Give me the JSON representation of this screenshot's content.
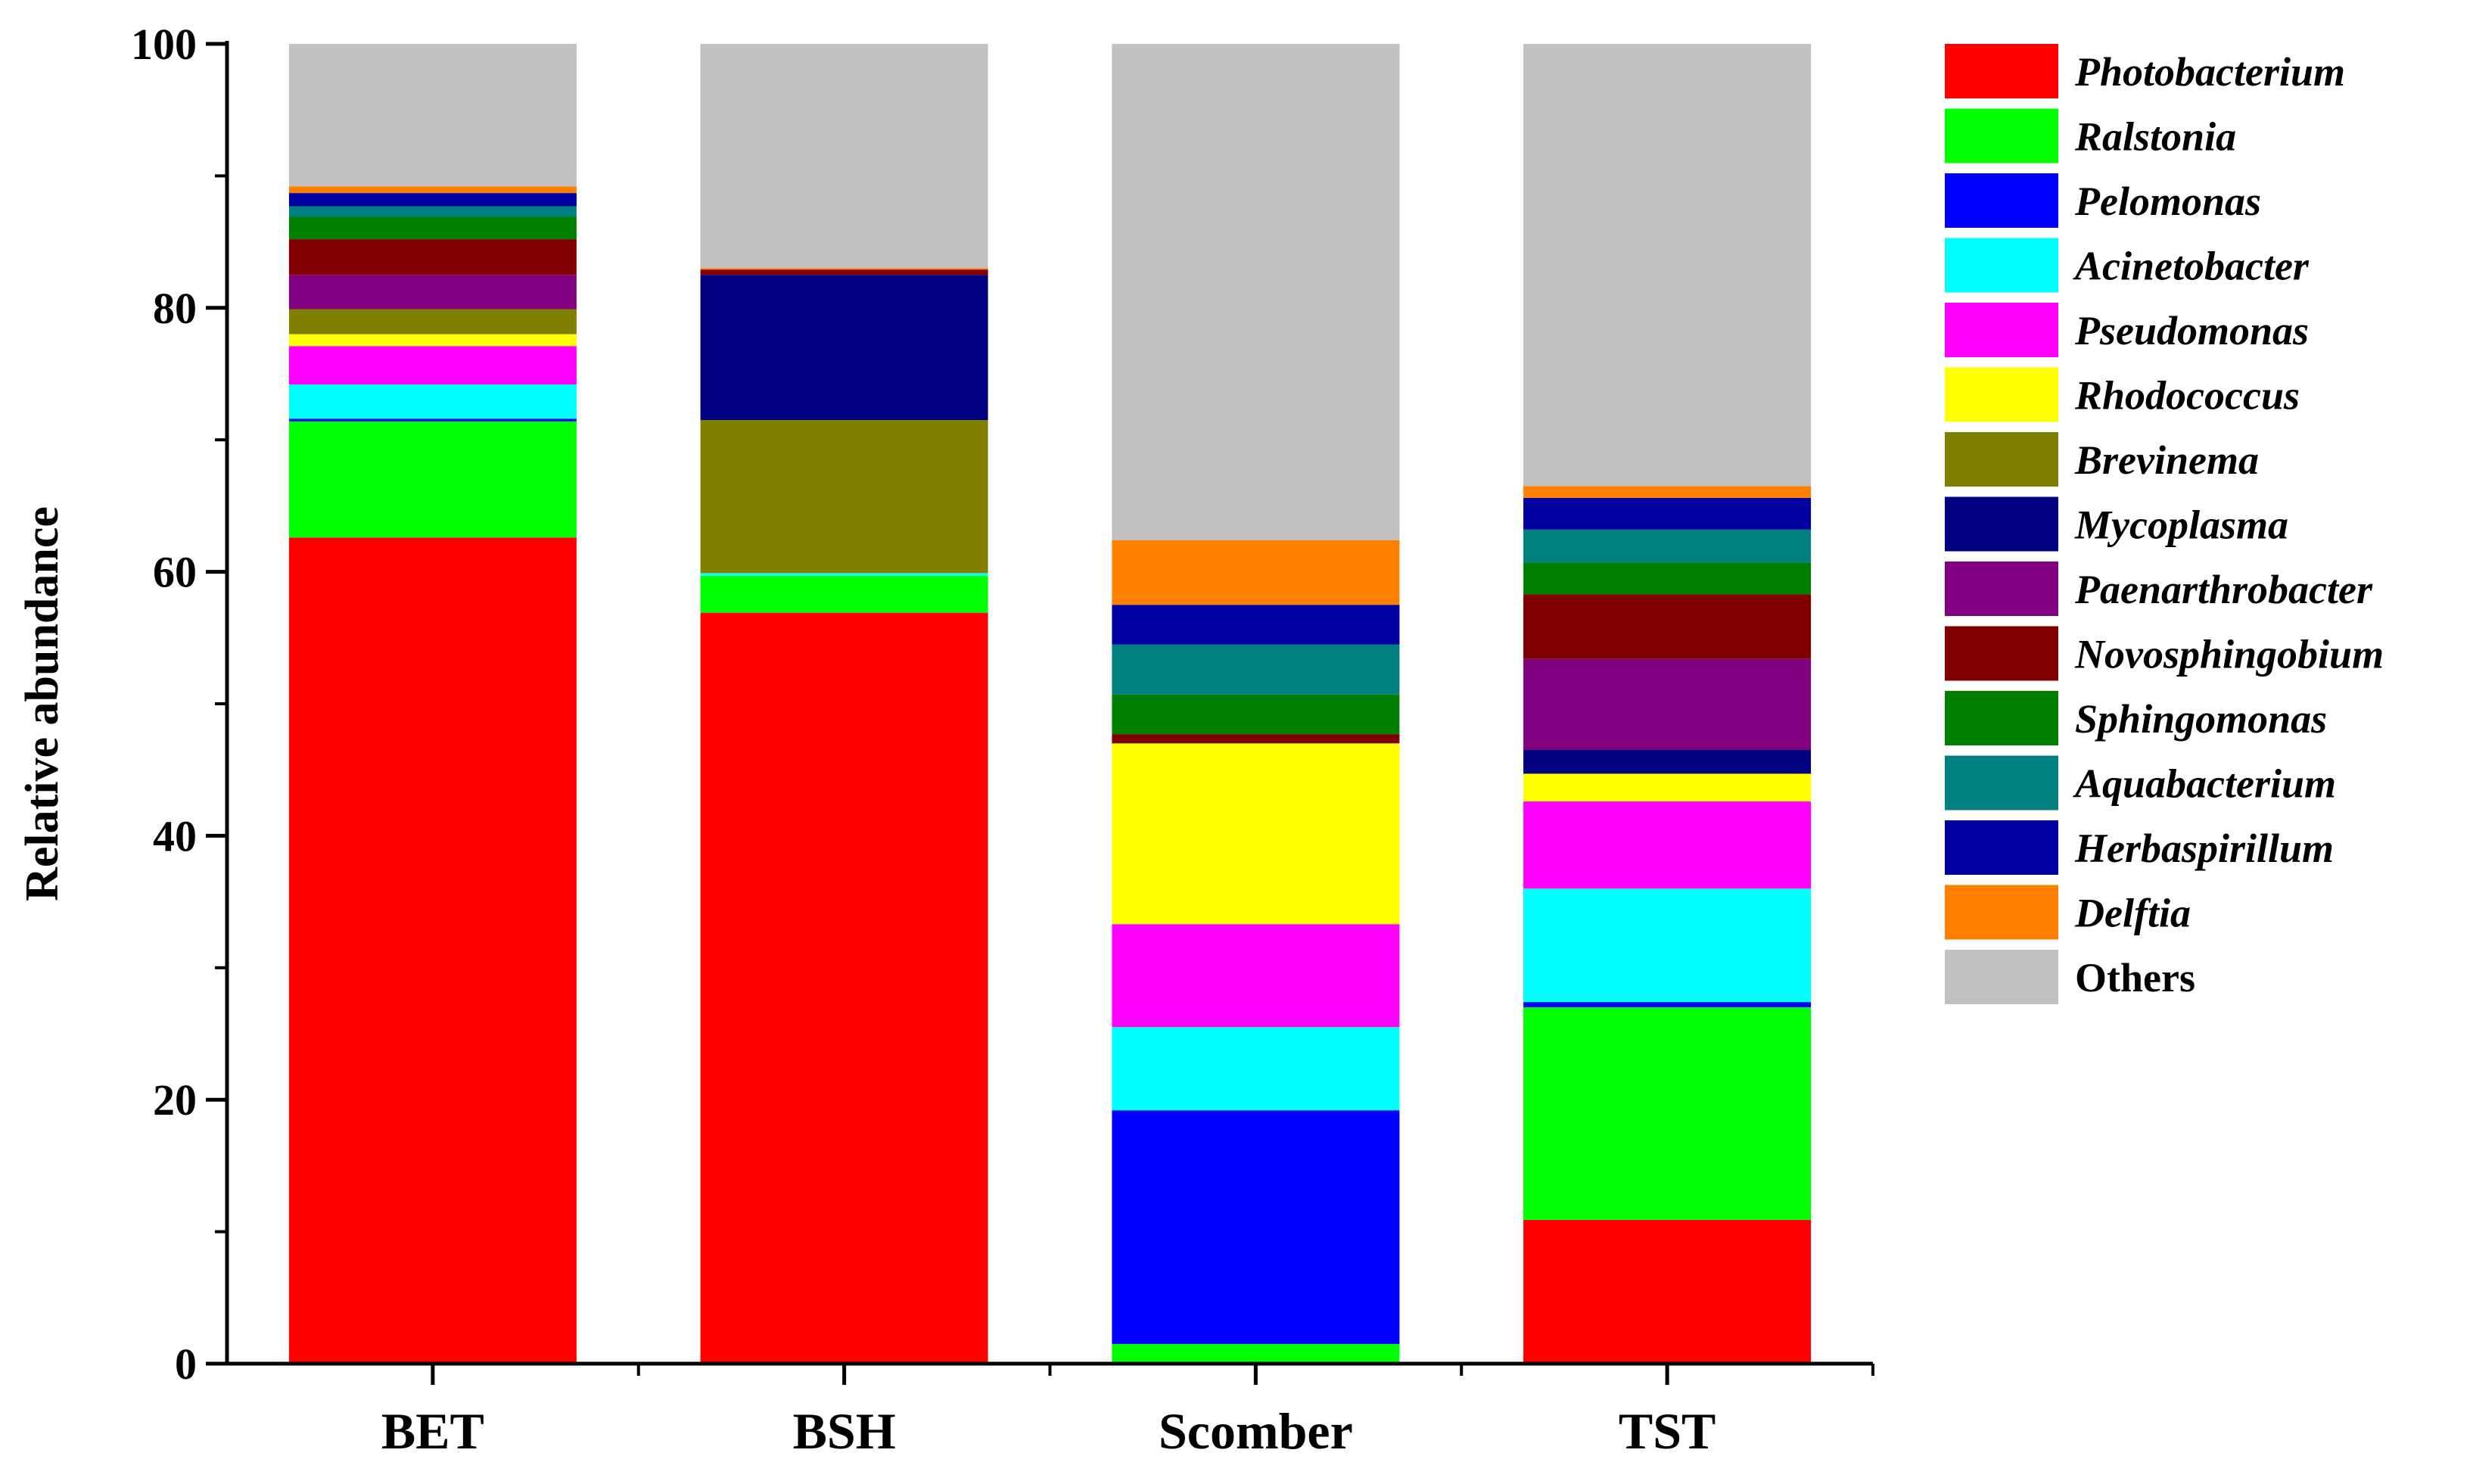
{
  "chart_data": {
    "type": "bar",
    "stacked": true,
    "title": "",
    "xlabel": "",
    "ylabel": "Relative abundance",
    "ylim": [
      0,
      100
    ],
    "yticks": [
      0,
      20,
      40,
      60,
      80,
      100
    ],
    "categories": [
      "BET",
      "BSH",
      "Scomber",
      "TST"
    ],
    "legend_position": "right",
    "series": [
      {
        "name": "Photobacterium",
        "color": "#FF0000",
        "italic": true,
        "values": [
          62.6,
          56.9,
          0.0,
          10.9
        ]
      },
      {
        "name": "Ralstonia",
        "color": "#00FF00",
        "italic": true,
        "values": [
          8.8,
          2.8,
          1.5,
          16.1
        ]
      },
      {
        "name": "Pelomonas",
        "color": "#0000FF",
        "italic": true,
        "values": [
          0.2,
          0.0,
          17.7,
          0.4
        ]
      },
      {
        "name": "Acinetobacter",
        "color": "#00FFFF",
        "italic": true,
        "values": [
          2.6,
          0.2,
          6.3,
          8.6
        ]
      },
      {
        "name": "Pseudomonas",
        "color": "#FF00FF",
        "italic": true,
        "values": [
          2.9,
          0.0,
          7.8,
          6.6
        ]
      },
      {
        "name": "Rhodococcus",
        "color": "#FFFF00",
        "italic": true,
        "values": [
          0.9,
          0.0,
          13.7,
          2.1
        ]
      },
      {
        "name": "Brevinema",
        "color": "#808000",
        "italic": true,
        "values": [
          1.9,
          11.6,
          0.0,
          0.0
        ]
      },
      {
        "name": "Mycoplasma",
        "color": "#000080",
        "italic": true,
        "values": [
          0.0,
          11.0,
          0.0,
          1.8
        ]
      },
      {
        "name": "Paenarthrobacter",
        "color": "#800080",
        "italic": true,
        "values": [
          2.6,
          0.0,
          0.0,
          6.9
        ]
      },
      {
        "name": "Novosphingobium",
        "color": "#800000",
        "italic": true,
        "values": [
          2.7,
          0.4,
          0.7,
          4.9
        ]
      },
      {
        "name": "Sphingomonas",
        "color": "#008000",
        "italic": true,
        "values": [
          1.7,
          0.0,
          3.0,
          2.4
        ]
      },
      {
        "name": "Aquabacterium",
        "color": "#008080",
        "italic": true,
        "values": [
          0.8,
          0.0,
          3.8,
          2.5
        ]
      },
      {
        "name": "Herbaspirillum",
        "color": "#0000A0",
        "italic": true,
        "values": [
          1.0,
          0.0,
          3.0,
          2.4
        ]
      },
      {
        "name": "Delftia",
        "color": "#FF8000",
        "italic": true,
        "values": [
          0.5,
          0.1,
          4.9,
          0.9
        ]
      },
      {
        "name": "Others",
        "color": "#C0C0C0",
        "italic": false,
        "values": [
          10.8,
          17.0,
          37.6,
          33.5
        ]
      }
    ]
  }
}
